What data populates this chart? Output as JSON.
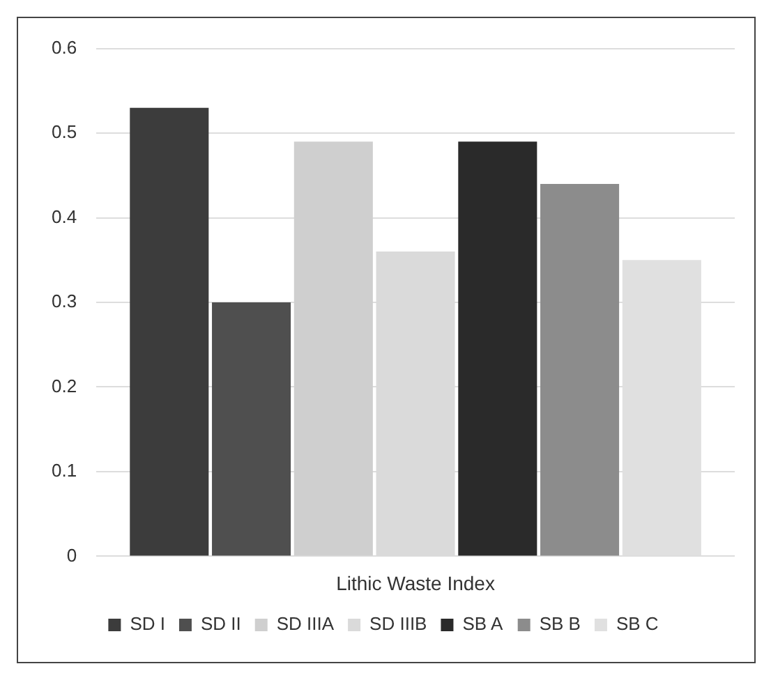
{
  "chart_data": {
    "type": "bar",
    "xlabel": "Lithic Waste Index",
    "categories": [
      null
    ],
    "series": [
      {
        "name": "SD I",
        "color": "#3c3c3c",
        "values": [
          0.53
        ]
      },
      {
        "name": "SD II",
        "color": "#4f4f4f",
        "values": [
          0.3
        ]
      },
      {
        "name": "SD IIIA",
        "color": "#cfcfcf",
        "values": [
          0.49
        ]
      },
      {
        "name": "SD IIIB",
        "color": "#dadada",
        "values": [
          0.36
        ]
      },
      {
        "name": "SB A",
        "color": "#2a2a2a",
        "values": [
          0.49
        ]
      },
      {
        "name": "SB B",
        "color": "#8c8c8c",
        "values": [
          0.44
        ]
      },
      {
        "name": "SB C",
        "color": "#e0e0e0",
        "values": [
          0.35
        ]
      }
    ],
    "ylim": [
      0,
      0.6
    ],
    "yticks": [
      0,
      0.1,
      0.2,
      0.3,
      0.4,
      0.5,
      0.6
    ],
    "grid": "y",
    "legend": "bottom"
  }
}
